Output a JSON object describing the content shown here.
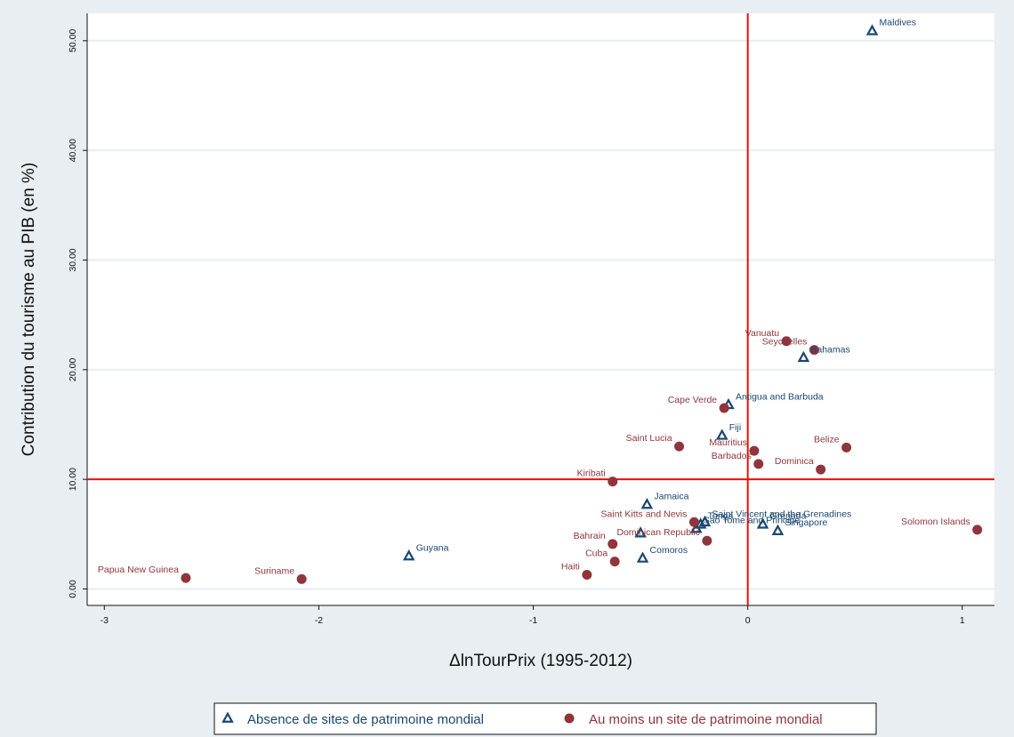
{
  "chart_data": {
    "type": "scatter",
    "title": "",
    "xlabel": "ΔlnTourPrix (1995-2012)",
    "ylabel": "Contribution du tourisme au PIB (en %)",
    "xlim": [
      -3.08,
      1.15
    ],
    "ylim": [
      -1.5,
      52.5
    ],
    "x_ticks": [
      -3,
      -2,
      -1,
      0,
      1
    ],
    "x_tick_labels": [
      "-3",
      "-2",
      "-1",
      "0",
      "1"
    ],
    "y_ticks": [
      0,
      10,
      20,
      30,
      40,
      50
    ],
    "y_tick_labels": [
      "0.00",
      "10.00",
      "20.00",
      "30.00",
      "40.00",
      "50.00"
    ],
    "grid": "horizontal",
    "reference_lines": {
      "x": 0,
      "y": 10,
      "color": "#e8120c"
    },
    "legend_position": "bottom",
    "colors": {
      "series1": "#1a476f",
      "series2": "#90353b",
      "background": "#e8eef2",
      "plot_area": "#ffffff"
    },
    "series": [
      {
        "name": "Absence de sites de patrimoine mondial",
        "marker": "hollow-triangle",
        "color": "#1a476f",
        "points": [
          {
            "label": "Maldives",
            "x": 0.58,
            "y": 50.9,
            "pos": "right"
          },
          {
            "label": "Bahamas",
            "x": 0.26,
            "y": 21.1,
            "pos": "right"
          },
          {
            "label": "Antigua and Barbuda",
            "x": -0.09,
            "y": 16.8,
            "pos": "right"
          },
          {
            "label": "Fiji",
            "x": -0.12,
            "y": 14.0,
            "pos": "right"
          },
          {
            "label": "Jamaica",
            "x": -0.47,
            "y": 7.7,
            "pos": "right"
          },
          {
            "label": "Saint Vincent and the Grenadines",
            "x": -0.2,
            "y": 6.1,
            "pos": "right"
          },
          {
            "label": "Tonga",
            "x": -0.22,
            "y": 5.9,
            "pos": "right"
          },
          {
            "label": "Sao Tome and Principe",
            "x": -0.24,
            "y": 5.5,
            "pos": "right"
          },
          {
            "label": "Grenada",
            "x": 0.07,
            "y": 5.9,
            "pos": "right"
          },
          {
            "label": "Singapore",
            "x": 0.14,
            "y": 5.3,
            "pos": "right"
          },
          {
            "label": "Comoros",
            "x": -0.49,
            "y": 2.8,
            "pos": "right"
          },
          {
            "label": "Guyana",
            "x": -1.58,
            "y": 3.0,
            "pos": "right"
          },
          {
            "label": "",
            "x": -0.5,
            "y": 5.1,
            "pos": "right"
          }
        ]
      },
      {
        "name": "Au moins un site de patrimoine mondial",
        "marker": "filled-circle",
        "color": "#90353b",
        "points": [
          {
            "label": "Vanuatu",
            "x": 0.18,
            "y": 22.6,
            "pos": "left"
          },
          {
            "label": "Seychelles",
            "x": 0.31,
            "y": 21.8,
            "pos": "left"
          },
          {
            "label": "Cape Verde",
            "x": -0.11,
            "y": 16.5,
            "pos": "left"
          },
          {
            "label": "Saint Lucia",
            "x": -0.32,
            "y": 13.0,
            "pos": "left"
          },
          {
            "label": "Belize",
            "x": 0.46,
            "y": 12.9,
            "pos": "left"
          },
          {
            "label": "Mauritius",
            "x": 0.03,
            "y": 12.6,
            "pos": "left"
          },
          {
            "label": "Barbados",
            "x": 0.05,
            "y": 11.4,
            "pos": "left"
          },
          {
            "label": "Dominica",
            "x": 0.34,
            "y": 10.9,
            "pos": "left"
          },
          {
            "label": "Kiribati",
            "x": -0.63,
            "y": 9.8,
            "pos": "left"
          },
          {
            "label": "Saint Kitts and Nevis",
            "x": -0.25,
            "y": 6.1,
            "pos": "left"
          },
          {
            "label": "Dominican Republic",
            "x": -0.19,
            "y": 4.4,
            "pos": "left"
          },
          {
            "label": "Bahrain",
            "x": -0.63,
            "y": 4.1,
            "pos": "left"
          },
          {
            "label": "Cuba",
            "x": -0.62,
            "y": 2.5,
            "pos": "left"
          },
          {
            "label": "Haiti",
            "x": -0.75,
            "y": 1.3,
            "pos": "left"
          },
          {
            "label": "Solomon Islands",
            "x": 1.07,
            "y": 5.4,
            "pos": "left"
          },
          {
            "label": "Papua New Guinea",
            "x": -2.62,
            "y": 1.0,
            "pos": "left"
          },
          {
            "label": "Suriname",
            "x": -2.08,
            "y": 0.9,
            "pos": "left"
          }
        ]
      }
    ]
  }
}
